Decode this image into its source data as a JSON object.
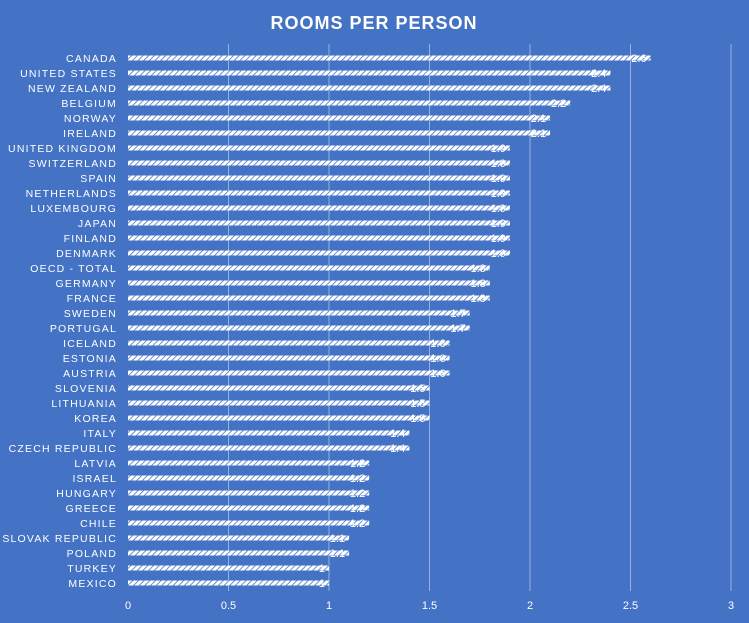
{
  "chart_data": {
    "type": "bar",
    "orientation": "horizontal",
    "title": "ROOMS PER PERSON",
    "xlabel": "",
    "ylabel": "",
    "xlim": [
      0,
      3
    ],
    "xticks": [
      "0",
      "0.5",
      "1",
      "1.5",
      "2",
      "2.5",
      "3"
    ],
    "grid": true,
    "legend": "none",
    "bar_color": "#ffffff",
    "background": "#4472C4",
    "categories": [
      "CANADA",
      "UNITED STATES",
      "NEW ZEALAND",
      "BELGIUM",
      "NORWAY",
      "IRELAND",
      "UNITED KINGDOM",
      "SWITZERLAND",
      "SPAIN",
      "NETHERLANDS",
      "LUXEMBOURG",
      "JAPAN",
      "FINLAND",
      "DENMARK",
      "OECD - TOTAL",
      "GERMANY",
      "FRANCE",
      "SWEDEN",
      "PORTUGAL",
      "ICELAND",
      "ESTONIA",
      "AUSTRIA",
      "SLOVENIA",
      "LITHUANIA",
      "KOREA",
      "ITALY",
      "CZECH REPUBLIC",
      "LATVIA",
      "ISRAEL",
      "HUNGARY",
      "GREECE",
      "CHILE",
      "SLOVAK REPUBLIC",
      "POLAND",
      "TURKEY",
      "MEXICO"
    ],
    "values": [
      2.6,
      2.4,
      2.4,
      2.2,
      2.1,
      2.1,
      1.9,
      1.9,
      1.9,
      1.9,
      1.9,
      1.9,
      1.9,
      1.9,
      1.8,
      1.8,
      1.8,
      1.7,
      1.7,
      1.6,
      1.6,
      1.6,
      1.5,
      1.5,
      1.5,
      1.4,
      1.4,
      1.2,
      1.2,
      1.2,
      1.2,
      1.2,
      1.1,
      1.1,
      1,
      1
    ],
    "data_labels": [
      "2.6",
      "2.4",
      "2.4",
      "2.2",
      "2.1",
      "2.1",
      "1.9",
      "1.9",
      "1.9",
      "1.9",
      "1.9",
      "1.9",
      "1.9",
      "1.9",
      "1.8",
      "1.8",
      "1.8",
      "1.7",
      "1.7",
      "1.6",
      "1.6",
      "1.6",
      "1.5",
      "1.5",
      "1.5",
      "1.4",
      "1.4",
      "1.2",
      "1.2",
      "1.2",
      "1.2",
      "1.2",
      "1.1",
      "1.1",
      "1",
      "1"
    ]
  }
}
